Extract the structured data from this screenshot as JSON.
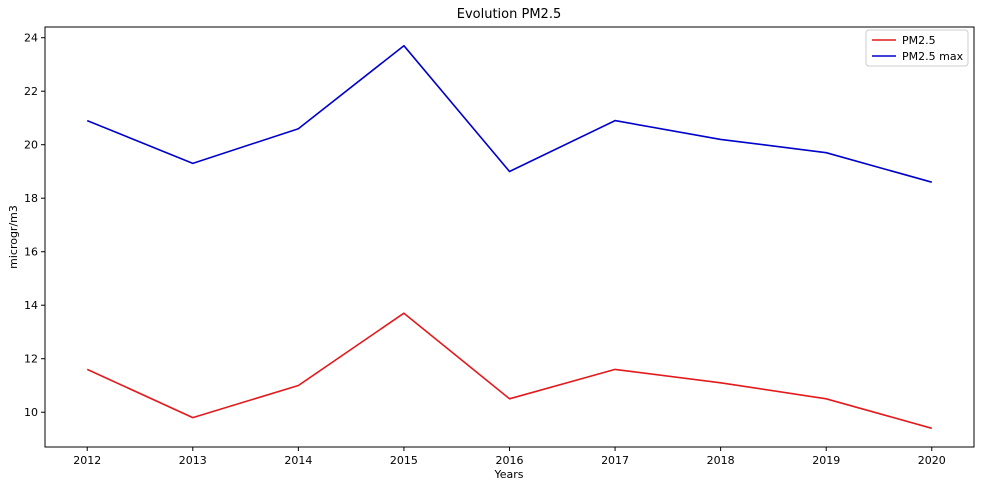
{
  "chart_data": {
    "type": "line",
    "title": "Evolution PM2.5",
    "xlabel": "Years",
    "ylabel": "microgr/m3",
    "x": [
      2012,
      2013,
      2014,
      2015,
      2016,
      2017,
      2018,
      2019,
      2020
    ],
    "x_ticks": [
      "2012",
      "2013",
      "2014",
      "2015",
      "2016",
      "2017",
      "2018",
      "2019",
      "2020"
    ],
    "y_ticks": [
      10,
      12,
      14,
      16,
      18,
      20,
      22,
      24
    ],
    "xlim": [
      2011.6,
      2020.4
    ],
    "ylim": [
      8.7,
      24.4
    ],
    "grid": false,
    "legend_position": "top-right",
    "series": [
      {
        "name": "PM2.5",
        "color": "#e31a1c",
        "values": [
          11.6,
          9.8,
          11.0,
          13.7,
          10.5,
          11.6,
          11.1,
          10.5,
          9.4
        ]
      },
      {
        "name": "PM2.5 max",
        "color": "#0000cc",
        "values": [
          20.9,
          19.3,
          20.6,
          23.7,
          19.0,
          20.9,
          20.2,
          19.7,
          18.6
        ]
      }
    ]
  }
}
